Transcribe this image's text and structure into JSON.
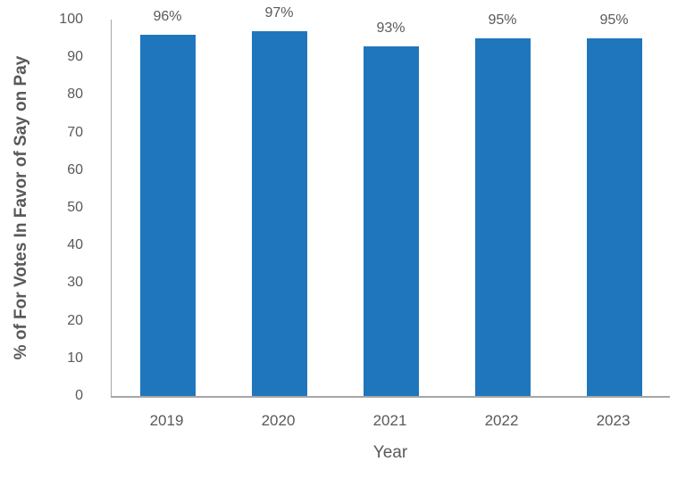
{
  "chart_data": {
    "type": "bar",
    "title": "",
    "xlabel": "Year",
    "ylabel": "% of For Votes In Favor of Say on Pay",
    "categories": [
      "2019",
      "2020",
      "2021",
      "2022",
      "2023"
    ],
    "values": [
      96,
      97,
      93,
      95,
      95
    ],
    "data_labels": [
      "96%",
      "97%",
      "93%",
      "95%",
      "95%"
    ],
    "ylim": [
      0,
      100
    ],
    "yticks": [
      0,
      10,
      20,
      30,
      40,
      50,
      60,
      70,
      80,
      90,
      100
    ],
    "grid": false,
    "legend": false,
    "bar_color": "#2076BC",
    "text_color": "#595959",
    "axis_line_color": "#A6A6A6"
  }
}
